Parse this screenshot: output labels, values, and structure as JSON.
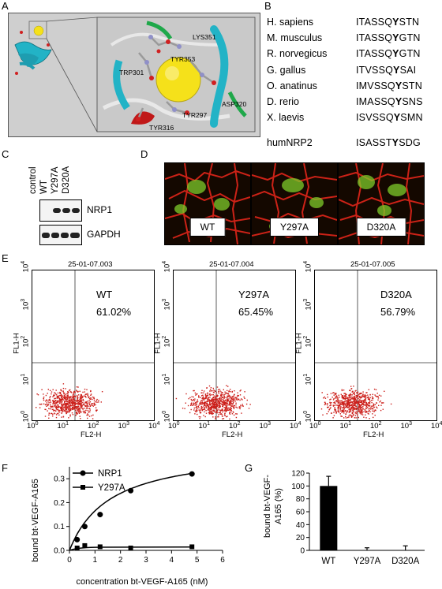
{
  "panels": {
    "A": "A",
    "B": "B",
    "C": "C",
    "D": "D",
    "E": "E",
    "F": "F",
    "G": "G"
  },
  "structure": {
    "residues": [
      "LYS351",
      "TYR353",
      "TRP301",
      "ASP320",
      "TYR297",
      "TYR316"
    ]
  },
  "alignment": {
    "rows": [
      {
        "species": "H. sapiens",
        "pre": "ITASSQ",
        "hl": "Y",
        "post": "STN"
      },
      {
        "species": "M. musculus",
        "pre": "ITASSQ",
        "hl": "Y",
        "post": "GTN"
      },
      {
        "species": "R. norvegicus",
        "pre": "ITASSQ",
        "hl": "Y",
        "post": "GTN"
      },
      {
        "species": "G. gallus",
        "pre": "ITVSSQ",
        "hl": "Y",
        "post": "SAI"
      },
      {
        "species": "O. anatinus",
        "pre": "IMVSSQ",
        "hl": "Y",
        "post": "STN"
      },
      {
        "species": "D. rerio",
        "pre": "IMASSQ",
        "hl": "Y",
        "post": "SNS"
      },
      {
        "species": "X. laevis",
        "pre": "ISVSSQ",
        "hl": "Y",
        "post": "SMN"
      }
    ],
    "extra": {
      "species": "humNRP2",
      "pre": "ISASST",
      "hl": "Y",
      "post": "SDG"
    }
  },
  "blot": {
    "lanes": [
      "control",
      "WT",
      "Y297A",
      "D320A"
    ],
    "proteins": [
      "NRP1",
      "GAPDH"
    ]
  },
  "microscopy": {
    "labels": [
      "WT",
      "Y297A",
      "D320A"
    ]
  },
  "facs": {
    "plots": [
      {
        "file": "25-01-07.003",
        "label": "WT",
        "percent": "61.02%"
      },
      {
        "file": "25-01-07.004",
        "label": "Y297A",
        "percent": "65.45%"
      },
      {
        "file": "25-01-07.005",
        "label": "D320A",
        "percent": "56.79%"
      }
    ],
    "ylabel": "FL1-H",
    "xlabel": "FL2-H",
    "ticks": {
      "base": "10",
      "exps": [
        "0",
        "1",
        "2",
        "3",
        "4"
      ]
    }
  },
  "colors": {
    "helix": "#22b3c6",
    "sphere": "#f5e11a",
    "dots": "#cc1f1a",
    "cell_red": "#e0251a",
    "cell_green": "#7ecb2a"
  },
  "chart_data": [
    {
      "type": "line",
      "title": "",
      "xlabel": "concentration bt-VEGF-A165 (nM)",
      "ylabel": "bound bt-VEGF-A165",
      "xlim": [
        0,
        6
      ],
      "ylim": [
        0,
        0.35
      ],
      "xticks": [
        "0",
        "1",
        "2",
        "3",
        "4",
        "5",
        "6"
      ],
      "yticks": [
        "0.0",
        "0.1",
        "0.2",
        "0.3"
      ],
      "legend_position": "top-left",
      "series": [
        {
          "name": "NRP1",
          "marker": "circle",
          "x": [
            0.3,
            0.6,
            1.2,
            2.4,
            4.8
          ],
          "y": [
            0.045,
            0.1,
            0.15,
            0.25,
            0.32
          ]
        },
        {
          "name": "Y297A",
          "marker": "square",
          "x": [
            0.3,
            0.6,
            1.2,
            2.4,
            4.8
          ],
          "y": [
            0.01,
            0.02,
            0.015,
            0.01,
            0.015
          ]
        }
      ]
    },
    {
      "type": "bar",
      "title": "",
      "xlabel": "",
      "ylabel": "bound bt-VEGF-A165 (%)",
      "ylim": [
        0,
        120
      ],
      "yticks": [
        "0",
        "20",
        "40",
        "60",
        "80",
        "100",
        "120"
      ],
      "categories": [
        "WT",
        "Y297A",
        "D320A"
      ],
      "values": [
        100,
        0,
        0
      ],
      "errors": [
        15,
        4,
        7
      ]
    }
  ]
}
